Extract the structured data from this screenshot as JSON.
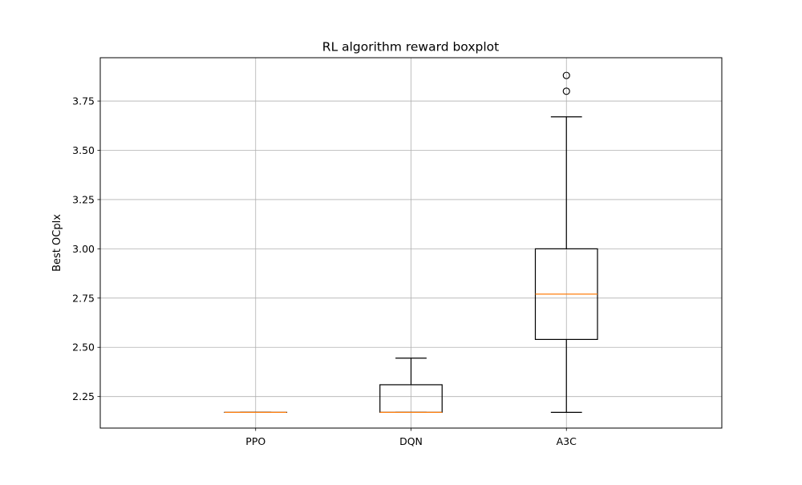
{
  "chart_data": {
    "type": "boxplot",
    "title": "RL algorithm reward boxplot",
    "xlabel": "",
    "ylabel": "Best OCplx",
    "ylim": [
      2.09,
      3.97
    ],
    "yticks": [
      "2.25",
      "2.50",
      "2.75",
      "3.00",
      "3.25",
      "3.50",
      "3.75"
    ],
    "grid": true,
    "categories": [
      "PPO",
      "DQN",
      "A3C"
    ],
    "boxes": [
      {
        "category": "PPO",
        "whisker_low": 2.17,
        "q1": 2.17,
        "median": 2.17,
        "q3": 2.17,
        "whisker_high": 2.17,
        "outliers": []
      },
      {
        "category": "DQN",
        "whisker_low": 2.17,
        "q1": 2.17,
        "median": 2.17,
        "q3": 2.31,
        "whisker_high": 2.445,
        "outliers": []
      },
      {
        "category": "A3C",
        "whisker_low": 2.17,
        "q1": 2.54,
        "median": 2.77,
        "q3": 3.0,
        "whisker_high": 3.67,
        "outliers": [
          3.8,
          3.88
        ]
      }
    ],
    "colors": {
      "box": "#000000",
      "median": "#ff7f0e",
      "grid": "#b0b0b0",
      "background": "#ffffff"
    }
  }
}
